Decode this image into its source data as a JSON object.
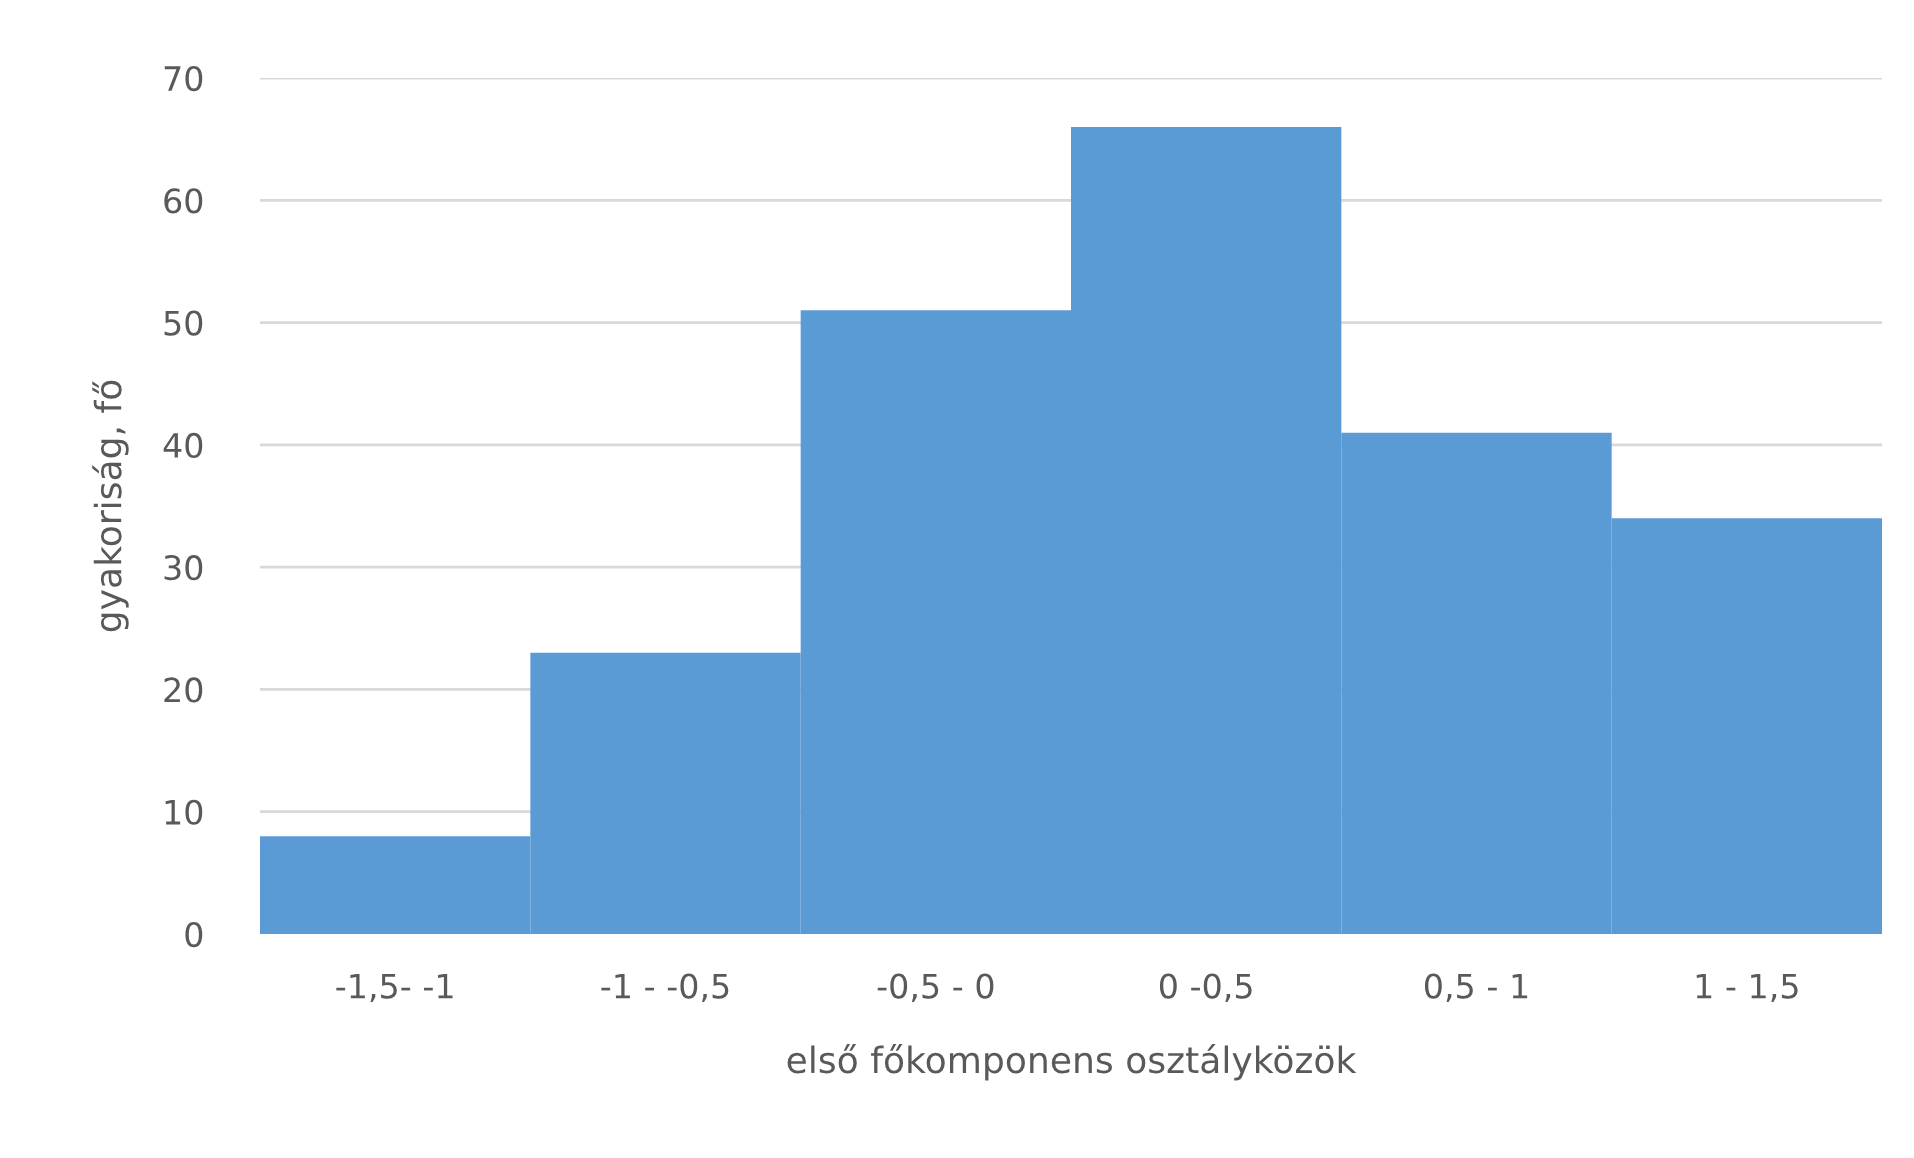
{
  "chart_data": {
    "type": "bar",
    "xlabel": "első főkomponens osztályközök",
    "ylabel": "gyakoriság, fő",
    "categories": [
      "-1,5- -1",
      "-1 - -0,5",
      "-0,5 - 0",
      "0 -0,5",
      "0,5 - 1",
      "1 - 1,5"
    ],
    "values": [
      8,
      23,
      51,
      66,
      41,
      34
    ],
    "color": "#5b9bd5",
    "ylim": [
      0,
      70
    ],
    "yticks": [
      0,
      10,
      20,
      30,
      40,
      50,
      60,
      70
    ],
    "grid": "y"
  }
}
